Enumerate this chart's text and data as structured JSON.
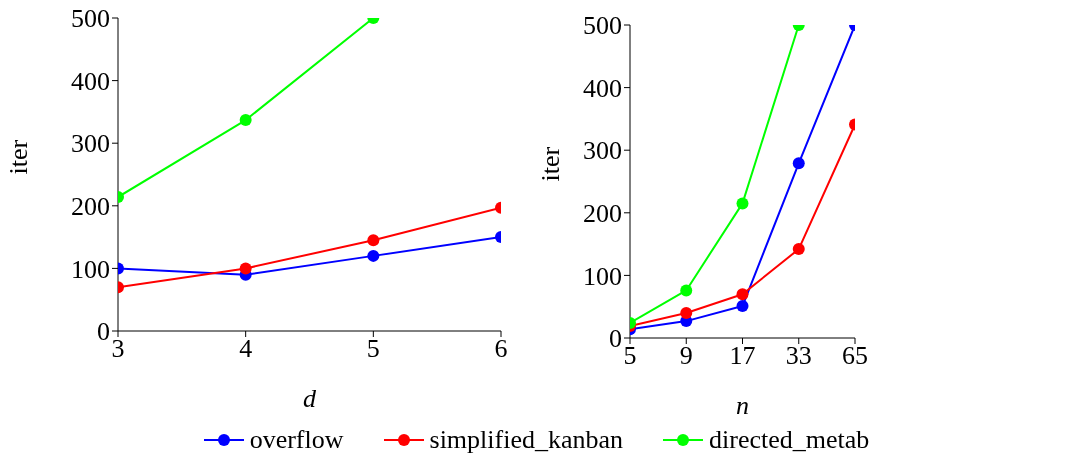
{
  "chart_data": [
    {
      "type": "line",
      "xlabel": "d",
      "ylabel": "iter",
      "x": [
        3,
        4,
        5,
        6
      ],
      "xlim": [
        3,
        6
      ],
      "xticks": [
        3,
        4,
        5,
        6
      ],
      "ylim": [
        0,
        500
      ],
      "yticks": [
        0,
        100,
        200,
        300,
        400,
        500
      ],
      "grid": false,
      "marker": "circle",
      "line_style": "solid",
      "legend": "bottom",
      "series": [
        {
          "name": "overflow",
          "color": "#0000ff",
          "values": [
            100,
            90,
            120,
            150
          ]
        },
        {
          "name": "simplified_kanban",
          "color": "#ff0000",
          "values": [
            70,
            100,
            145,
            197
          ]
        },
        {
          "name": "directed_metab",
          "color": "#00ff00",
          "values": [
            214,
            337,
            500,
            null
          ]
        }
      ]
    },
    {
      "type": "line",
      "xlabel": "n",
      "ylabel": "iter",
      "categories": [
        "5",
        "9",
        "17",
        "33",
        "65"
      ],
      "ylim": [
        0,
        500
      ],
      "yticks": [
        0,
        100,
        200,
        300,
        400,
        500
      ],
      "grid": false,
      "marker": "circle",
      "line_style": "solid",
      "legend": "bottom",
      "series": [
        {
          "name": "overflow",
          "color": "#0000ff",
          "values": [
            14,
            27,
            51,
            279,
            500
          ]
        },
        {
          "name": "simplified_kanban",
          "color": "#ff0000",
          "values": [
            19,
            40,
            70,
            142,
            341
          ]
        },
        {
          "name": "directed_metab",
          "color": "#00ff00",
          "values": [
            24,
            76,
            215,
            500,
            null
          ]
        }
      ]
    }
  ]
}
